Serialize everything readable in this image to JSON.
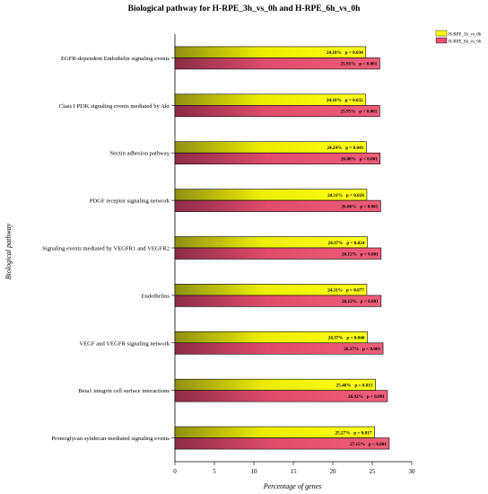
{
  "colors": {
    "series1": "#ffff00",
    "series2": "#e8506f",
    "axis": "#000000",
    "text": "#000000"
  },
  "chart_data": {
    "type": "bar",
    "orientation": "horizontal",
    "title": "Biological pathway for H-RPE_3h_vs_0h and H-RPE_6h_vs_0h",
    "xlabel": "Percentage of genes",
    "ylabel": "Biological pathway",
    "xlim": [
      0,
      30
    ],
    "xticks": [
      "0",
      "5",
      "10",
      "15",
      "20",
      "25",
      "30"
    ],
    "grid": false,
    "legend_position": "top-right",
    "categories": [
      "EGFR-dependent Endothelin signaling events",
      "Class I PI3K signaling events mediated by Akt",
      "Nectin adhesion pathway",
      "PDGF receptor signaling network",
      "Signaling events mediated by VEGFR1 and VEGFR2",
      "Endothelins",
      "VEGF and VEGFR signaling network",
      "Beta1 integrin cell surface interactions",
      "Proteoglycan syndecan-mediated signaling events"
    ],
    "series": [
      {
        "name": "H-RPE_3h_vs_0h",
        "values": [
          24.18,
          24.18,
          24.24,
          24.31,
          24.37,
          24.31,
          24.37,
          25.4,
          25.27
        ],
        "labels": [
          "24.18%   p = 0.034",
          "24.18%   p = 0.032",
          "24.24%   p = 0.041",
          "24.31%   p = 0.026",
          "24.37%   p = 0.024",
          "24.31%   p = 0.077",
          "24.37%   p = 0.046",
          "25.40%   p = 0.015",
          "25.27%   p = 0.017"
        ]
      },
      {
        "name": "H-RPE_6h_vs_0h",
        "values": [
          25.95,
          25.95,
          26.0,
          26.06,
          26.12,
          26.12,
          26.37,
          26.92,
          27.15
        ],
        "labels": [
          "25.95%   p < 0.001",
          "25.95%   p < 0.001",
          "26.00%   p < 0.001",
          "26.06%   p < 0.001",
          "26.12%   p < 0.001",
          "26.12%   p < 0.001",
          "26.37%   p < 0.001",
          "26.92%   p < 0.001",
          "27.15%   p < 0.001"
        ]
      }
    ]
  }
}
